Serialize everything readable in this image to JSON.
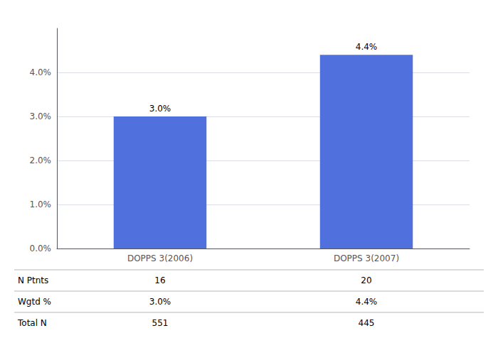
{
  "chart_data": {
    "type": "bar",
    "categories": [
      "DOPPS 3(2006)",
      "DOPPS 3(2007)"
    ],
    "values": [
      3.0,
      4.4
    ],
    "value_labels": [
      "3.0%",
      "4.4%"
    ],
    "data_labels": true,
    "ylim": [
      0,
      5.0
    ],
    "yticks": [
      {
        "value": 0.0,
        "label": "0.0%"
      },
      {
        "value": 1.0,
        "label": "1.0%"
      },
      {
        "value": 2.0,
        "label": "2.0%"
      },
      {
        "value": 3.0,
        "label": "3.0%"
      },
      {
        "value": 4.0,
        "label": "4.0%"
      }
    ],
    "grid": true,
    "table": {
      "row_labels": [
        "N Ptnts",
        "Wgtd %",
        "Total N"
      ],
      "cells": [
        [
          "16",
          "20"
        ],
        [
          "3.0%",
          "4.4%"
        ],
        [
          "551",
          "445"
        ]
      ]
    }
  }
}
